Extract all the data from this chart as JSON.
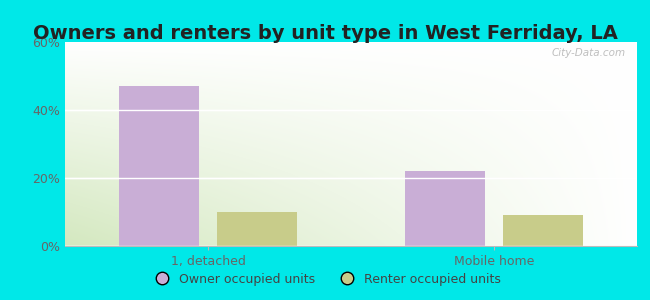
{
  "title": "Owners and renters by unit type in West Ferriday, LA",
  "categories": [
    "1, detached",
    "Mobile home"
  ],
  "owner_values": [
    47,
    22
  ],
  "renter_values": [
    10,
    9
  ],
  "owner_color": "#c9aed6",
  "renter_color": "#c8cc8a",
  "ylim": [
    0,
    60
  ],
  "yticks": [
    0,
    20,
    40,
    60
  ],
  "ytick_labels": [
    "0%",
    "20%",
    "40%",
    "60%"
  ],
  "bar_width": 0.28,
  "legend_labels": [
    "Owner occupied units",
    "Renter occupied units"
  ],
  "outer_bg_color": "#00e8e8",
  "plot_bg_color_topleft": "#f0faf0",
  "plot_bg_color_topright": "#ffffff",
  "plot_bg_color_bottom": "#d4e8c0",
  "watermark": "City-Data.com",
  "title_fontsize": 14,
  "axis_fontsize": 9,
  "title_color": "#222222"
}
